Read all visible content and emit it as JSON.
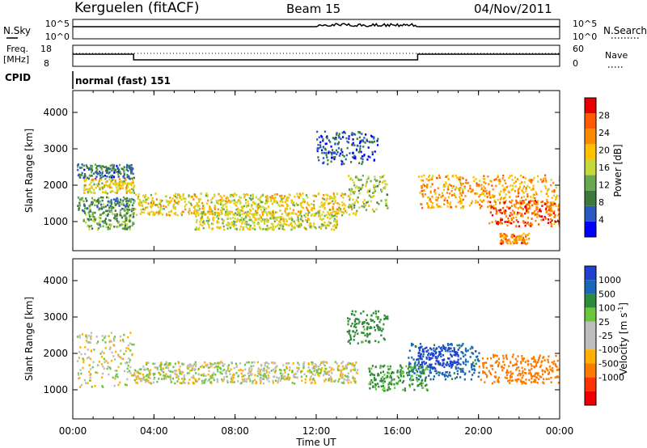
{
  "header": {
    "station": "Kerguelen (fitACF)",
    "beam": "Beam 15",
    "date": "04/Nov/2011"
  },
  "panels": {
    "nsky": {
      "left_label": "N.Sky",
      "right_label": "N.Search",
      "ticks_left": [
        "10^5",
        "10^0"
      ],
      "ticks_right": [
        "10^5",
        "10^0"
      ]
    },
    "freq": {
      "left_label_1": "Freq.",
      "left_label_2": "[MHz]",
      "right_label": "Nave",
      "ticks_left": [
        "18",
        "8"
      ],
      "ticks_right": [
        "60",
        "0"
      ]
    },
    "cpid": {
      "label": "CPID",
      "value": "normal (fast) 151"
    }
  },
  "colors": {
    "power_scale": [
      "#0000ff",
      "#2b59c3",
      "#3a7a3a",
      "#6aa84f",
      "#c6d93c",
      "#ffc000",
      "#ff8c00",
      "#ff5a00",
      "#e60000"
    ],
    "velocity_scale": [
      "#2040d0",
      "#1a66b8",
      "#2e8b3a",
      "#6cc63c",
      "#bdbdbd",
      "#bdbdbd",
      "#ffb000",
      "#ff7a00",
      "#ff3300",
      "#ee0000"
    ]
  },
  "chart_data": [
    {
      "type": "heatmap",
      "quantity": "power",
      "ylabel": "Slant Range [km]",
      "ylim": [
        200,
        4600
      ],
      "yticks": [
        "4000",
        "3000",
        "2000",
        "1000"
      ],
      "colorbar_label": "Power [dB]",
      "colorbar_ticks": [
        "28",
        "24",
        "20",
        "16",
        "12",
        "8",
        "4"
      ],
      "colorbar_range": [
        0,
        32
      ],
      "features": [
        {
          "x": [
            0.2,
            3.0
          ],
          "range": [
            2200,
            2600
          ],
          "value": 8
        },
        {
          "x": [
            0.5,
            3.0
          ],
          "range": [
            1800,
            2200
          ],
          "value": 18
        },
        {
          "x": [
            0.2,
            3.0
          ],
          "range": [
            1300,
            1700
          ],
          "value": 10
        },
        {
          "x": [
            0.5,
            3.0
          ],
          "range": [
            800,
            1300
          ],
          "value": 12
        },
        {
          "x": [
            3.0,
            14.0
          ],
          "range": [
            1200,
            1800
          ],
          "value": 18
        },
        {
          "x": [
            6.0,
            13.0
          ],
          "range": [
            800,
            1300
          ],
          "value": 16
        },
        {
          "x": [
            13.5,
            15.5
          ],
          "range": [
            1300,
            2300
          ],
          "value": 14
        },
        {
          "x": [
            12.0,
            15.0
          ],
          "range": [
            2600,
            3500
          ],
          "value": 6
        },
        {
          "x": [
            17.0,
            24.0
          ],
          "range": [
            1400,
            2300
          ],
          "value": 22
        },
        {
          "x": [
            20.5,
            24.0
          ],
          "range": [
            900,
            1600
          ],
          "value": 26
        },
        {
          "x": [
            21.0,
            22.5
          ],
          "range": [
            400,
            700
          ],
          "value": 24
        }
      ]
    },
    {
      "type": "heatmap",
      "quantity": "velocity",
      "ylabel": "Slant Range [km]",
      "ylim": [
        200,
        4600
      ],
      "yticks": [
        "4000",
        "3000",
        "2000",
        "1000"
      ],
      "colorbar_label": "Velocity [m s^-1]",
      "colorbar_ticks": [
        "1000",
        "500",
        "100",
        "25",
        "-25",
        "-100",
        "-500",
        "-1000"
      ],
      "features": [
        {
          "x": [
            0.2,
            3.0
          ],
          "range": [
            1100,
            2600
          ],
          "value": 0
        },
        {
          "x": [
            3.0,
            14.0
          ],
          "range": [
            1200,
            1800
          ],
          "value": 0
        },
        {
          "x": [
            13.5,
            15.5
          ],
          "range": [
            2300,
            3200
          ],
          "value": 150
        },
        {
          "x": [
            16.5,
            20.0
          ],
          "range": [
            1300,
            2300
          ],
          "value": 300
        },
        {
          "x": [
            17.0,
            19.0
          ],
          "range": [
            1600,
            2200
          ],
          "value": 700
        },
        {
          "x": [
            20.0,
            24.0
          ],
          "range": [
            1200,
            2000
          ],
          "value": -200
        },
        {
          "x": [
            14.5,
            17.5
          ],
          "range": [
            1000,
            1700
          ],
          "value": 120
        }
      ]
    }
  ],
  "time_axis": {
    "label": "Time UT",
    "ticks": [
      "00:00",
      "04:00",
      "08:00",
      "12:00",
      "16:00",
      "20:00",
      "00:00"
    ],
    "range": [
      0,
      24
    ]
  }
}
